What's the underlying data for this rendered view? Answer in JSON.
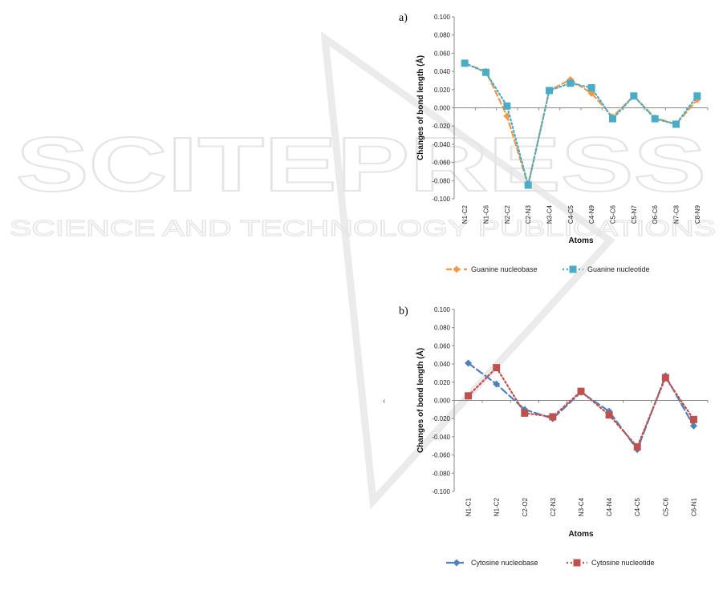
{
  "watermark": {
    "big": "SCITEPRESS",
    "small": "SCIENCE AND TECHNOLOGY PUBLICATIONS",
    "color": "#e6e6e6"
  },
  "stray_mark": "‹",
  "chart_data": [
    {
      "panel_label": "a)",
      "type": "line",
      "ylabel": "Changes of bond length (Å)",
      "xlabel": "Atoms",
      "ylim": [
        -0.1,
        0.1
      ],
      "ytick_step": 0.02,
      "yticks": [
        "0.100",
        "0.080",
        "0.060",
        "0.040",
        "0.020",
        "0.000",
        "-0.020",
        "-0.040",
        "-0.060",
        "-0.080",
        "-0.100"
      ],
      "categories": [
        "N1-C2",
        "N1-C6",
        "N2-C2",
        "C2-N3",
        "N3-C4",
        "C4-C5",
        "C4-N9",
        "C5-C6",
        "C5-N7",
        "O6-C6",
        "N7-C8",
        "C8-N9"
      ],
      "legend_position": "bottom",
      "series": [
        {
          "name": "Guanine nucleobase",
          "color": "#f79646",
          "marker": "diamond",
          "dash": "7,4",
          "values": [
            0.049,
            0.04,
            -0.009,
            -0.085,
            0.019,
            0.031,
            0.016,
            -0.01,
            0.013,
            -0.011,
            -0.018,
            0.009
          ]
        },
        {
          "name": "Guanine nucleotide",
          "color": "#4bacc6",
          "marker": "square",
          "dash": "2,3",
          "values": [
            0.049,
            0.039,
            0.002,
            -0.085,
            0.019,
            0.027,
            0.022,
            -0.012,
            0.013,
            -0.012,
            -0.018,
            0.013
          ]
        }
      ]
    },
    {
      "panel_label": "b)",
      "type": "line",
      "ylabel": "Changes of bond length (Å)",
      "xlabel": "Atoms",
      "ylim": [
        -0.1,
        0.1
      ],
      "ytick_step": 0.02,
      "yticks": [
        "0.100",
        "0.080",
        "0.060",
        "0.040",
        "0.020",
        "0.000",
        "-0.020",
        "-0.040",
        "-0.060",
        "-0.080",
        "-0.100"
      ],
      "categories": [
        "N1-C1",
        "N1-C2",
        "C2-O2",
        "C2-N3",
        "N3-C4",
        "C4-N4",
        "C4-C5",
        "C5-C6",
        "C6-N1"
      ],
      "legend_position": "bottom",
      "series": [
        {
          "name": "Cytosine nucleobase",
          "color": "#4f81bd",
          "marker": "diamond",
          "dash": "9,4",
          "values": [
            0.041,
            0.018,
            -0.01,
            -0.02,
            0.009,
            -0.012,
            -0.054,
            0.027,
            -0.028
          ]
        },
        {
          "name": "Cytosine nucleotide",
          "color": "#c0504d",
          "marker": "square",
          "dash": "2,3",
          "values": [
            0.005,
            0.036,
            -0.014,
            -0.018,
            0.01,
            -0.016,
            -0.051,
            0.025,
            -0.021
          ]
        }
      ]
    }
  ]
}
